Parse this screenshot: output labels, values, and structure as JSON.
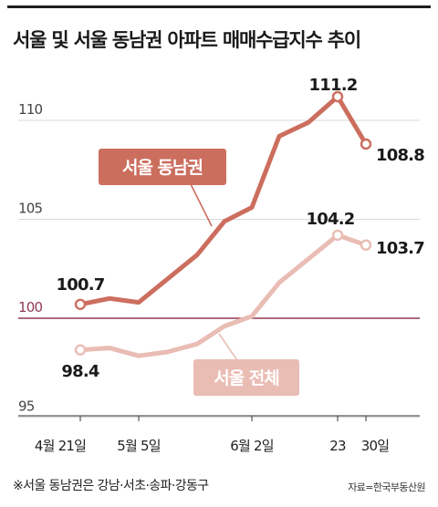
{
  "title": "서울 및 서울 동남권 아파트 매매수급지수 추이",
  "footnote": "※서울 동남권은 강남·서초·송파·강동구",
  "source": "자료=한국부동산원",
  "colors": {
    "gangnam_line": "#cc6e5e",
    "seoul_line": "#e9bcb4",
    "baseline": "#8e3a52",
    "grid": "#d9d9d9",
    "axis": "#555555"
  },
  "chart_data": {
    "type": "line",
    "title": "서울 및 서울 동남권 아파트 매매수급지수 추이",
    "ylim": [
      95,
      112
    ],
    "yticks": [
      95,
      100,
      105,
      110
    ],
    "reference_line": 100,
    "x_tick_labels": [
      "4월 21일",
      "5월 5일",
      "6월 2일",
      "23",
      "30일"
    ],
    "grid": true,
    "series": [
      {
        "name": "서울 동남권",
        "color": "#cc6e5e",
        "values": [
          100.7,
          101.0,
          100.8,
          102.0,
          103.2,
          104.9,
          105.6,
          109.2,
          109.9,
          111.2,
          108.8
        ],
        "labels": [
          {
            "index": 0,
            "text": "100.7"
          },
          {
            "index": 9,
            "text": "111.2"
          },
          {
            "index": 10,
            "text": "108.8"
          }
        ]
      },
      {
        "name": "서울 전체",
        "color": "#e9bcb4",
        "values": [
          98.4,
          98.5,
          98.1,
          98.3,
          98.7,
          99.6,
          100.1,
          101.8,
          103.0,
          104.2,
          103.7
        ],
        "labels": [
          {
            "index": 0,
            "text": "98.4"
          },
          {
            "index": 9,
            "text": "104.2"
          },
          {
            "index": 10,
            "text": "103.7"
          }
        ]
      }
    ]
  }
}
